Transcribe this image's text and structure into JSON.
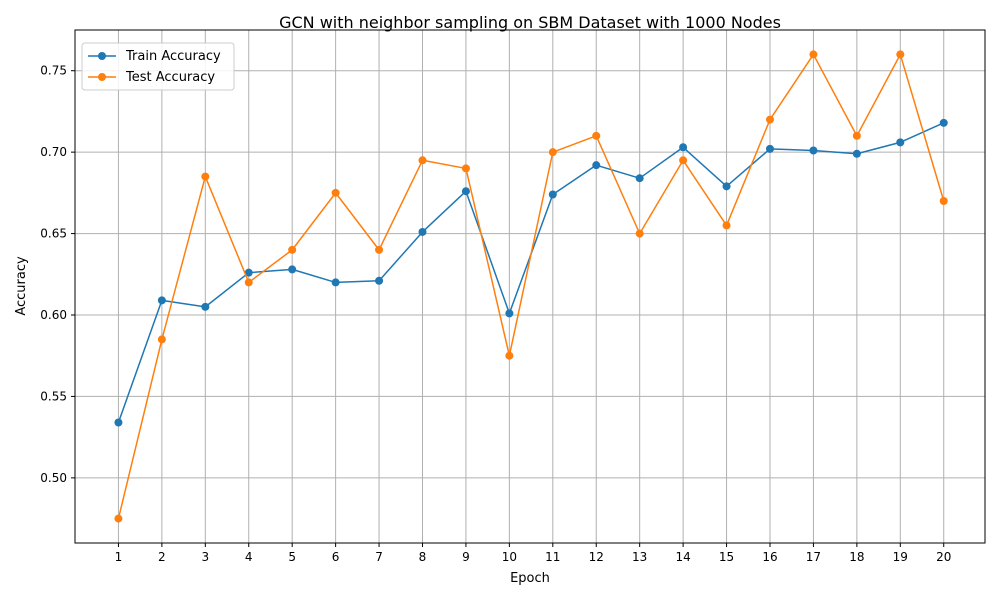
{
  "chart_data": {
    "type": "line",
    "title": "GCN with neighbor sampling on SBM Dataset with 1000 Nodes",
    "xlabel": "Epoch",
    "ylabel": "Accuracy",
    "x": [
      1,
      2,
      3,
      4,
      5,
      6,
      7,
      8,
      9,
      10,
      11,
      12,
      13,
      14,
      15,
      16,
      17,
      18,
      19,
      20
    ],
    "x_ticks": [
      "1",
      "2",
      "3",
      "4",
      "5",
      "6",
      "7",
      "8",
      "9",
      "10",
      "11",
      "12",
      "13",
      "14",
      "15",
      "16",
      "17",
      "18",
      "19",
      "20"
    ],
    "y_ticks": [
      "0.50",
      "0.55",
      "0.60",
      "0.65",
      "0.70",
      "0.75"
    ],
    "y_tick_values": [
      0.5,
      0.55,
      0.6,
      0.65,
      0.7,
      0.75
    ],
    "xlim": [
      0.0,
      20.95
    ],
    "ylim": [
      0.46,
      0.775
    ],
    "grid": true,
    "legend_position": "top-left",
    "series": [
      {
        "name": "Train Accuracy",
        "color": "#1f77b4",
        "values": [
          0.534,
          0.609,
          0.605,
          0.626,
          0.628,
          0.62,
          0.621,
          0.651,
          0.676,
          0.601,
          0.674,
          0.692,
          0.684,
          0.703,
          0.679,
          0.702,
          0.701,
          0.699,
          0.706,
          0.718
        ]
      },
      {
        "name": "Test Accuracy",
        "color": "#ff7f0e",
        "values": [
          0.475,
          0.585,
          0.685,
          0.62,
          0.64,
          0.675,
          0.64,
          0.695,
          0.69,
          0.575,
          0.7,
          0.71,
          0.65,
          0.695,
          0.655,
          0.72,
          0.76,
          0.71,
          0.76,
          0.67
        ]
      }
    ]
  }
}
